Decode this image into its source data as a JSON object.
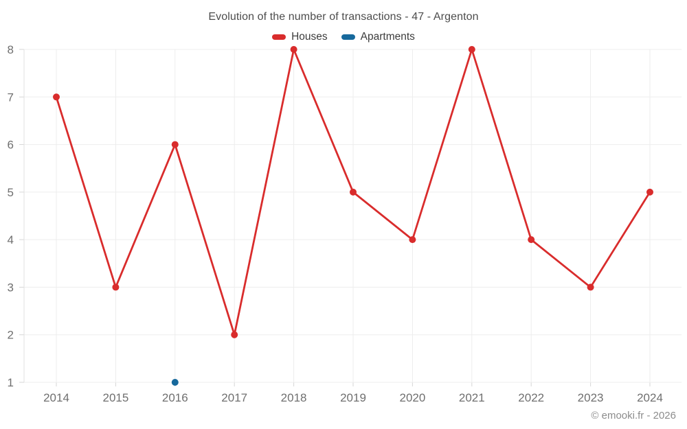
{
  "chart": {
    "title": "Evolution of the number of transactions - 47 - Argenton",
    "copyright": "© emooki.fr - 2026"
  },
  "chart_data": {
    "type": "line",
    "title": "Evolution of the number of transactions - 47 - Argenton",
    "categories": [
      "2014",
      "2015",
      "2016",
      "2017",
      "2018",
      "2019",
      "2020",
      "2021",
      "2022",
      "2023",
      "2024"
    ],
    "series": [
      {
        "name": "Houses",
        "color": "#d92c2c",
        "values": [
          7,
          3,
          6,
          2,
          8,
          5,
          4,
          8,
          4,
          3,
          5
        ]
      },
      {
        "name": "Apartments",
        "color": "#17699c",
        "values": [
          null,
          null,
          1,
          null,
          null,
          null,
          null,
          null,
          null,
          null,
          null
        ]
      }
    ],
    "xlabel": "",
    "ylabel": "",
    "ylim": [
      1,
      8
    ],
    "yticks": [
      1,
      2,
      3,
      4,
      5,
      6,
      7,
      8
    ],
    "grid": true,
    "legend_position": "top",
    "colors": {
      "grid": "#ededed",
      "axis": "#e2e2e2",
      "tick": "#d6d6d6",
      "axis_label": "#6f6f6f"
    }
  }
}
